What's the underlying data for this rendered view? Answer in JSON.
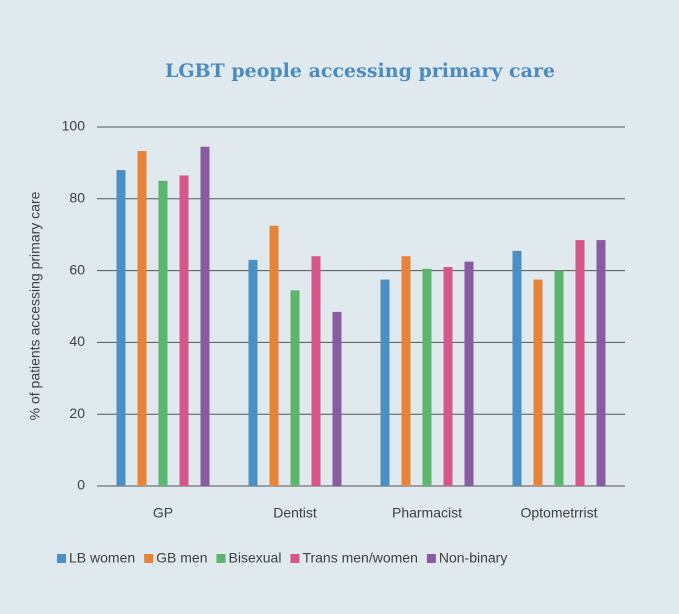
{
  "chart_data": {
    "type": "bar",
    "title": "LGBT people accessing primary care",
    "y_label": "% of patients accessing primary care",
    "categories": [
      "GP",
      "Dentist",
      "Pharmacist",
      "Optometrrist"
    ],
    "series": [
      {
        "name": "LB women",
        "color": "#4a90c4",
        "values": [
          88,
          63,
          57.5,
          65.5
        ]
      },
      {
        "name": "GB men",
        "color": "#e8833a",
        "values": [
          93.3,
          72.5,
          64,
          57.5
        ]
      },
      {
        "name": "Bisexual",
        "color": "#5bb56e",
        "values": [
          85,
          54.5,
          60.5,
          60
        ]
      },
      {
        "name": "Trans men/women",
        "color": "#d6558a",
        "values": [
          86.5,
          64,
          61,
          68.5
        ]
      },
      {
        "name": "Non-binary",
        "color": "#8a5ba3",
        "values": [
          94.5,
          48.5,
          62.5,
          68.5
        ]
      }
    ],
    "ylim": [
      0,
      100
    ],
    "yticks": [
      0,
      20,
      40,
      60,
      80,
      100
    ],
    "grid": true
  }
}
